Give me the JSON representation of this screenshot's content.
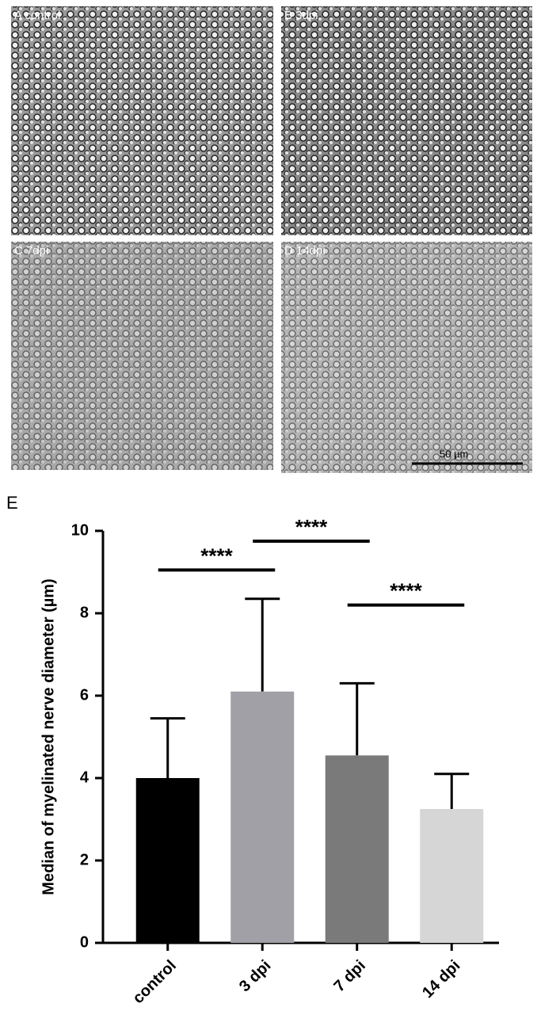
{
  "panels": [
    {
      "label": "A control",
      "shade": "#9a9a9a"
    },
    {
      "label": "B 3dpi",
      "shade": "#8a8a8a"
    },
    {
      "label": "C 7dpi",
      "shade": "#a9a9a9"
    },
    {
      "label": "D 14dpi",
      "shade": "#b5b5b5"
    }
  ],
  "scale_bar": "50 µm",
  "chart_data": {
    "type": "bar",
    "panel_label": "E",
    "ylabel": "Median of myelinated nerve diameter (µm)",
    "categories": [
      "control",
      "3 dpi",
      "7 dpi",
      "14 dpi"
    ],
    "values": [
      4.0,
      6.1,
      4.55,
      3.25
    ],
    "errors": [
      1.45,
      2.25,
      1.75,
      0.85
    ],
    "colors": [
      "#000000",
      "#a0a0a6",
      "#7a7a7a",
      "#d6d6d6"
    ],
    "ylim": [
      0,
      10
    ],
    "yticks": [
      0,
      2,
      4,
      6,
      8,
      10
    ],
    "annotations": [
      {
        "text": "****",
        "between": [
          "control",
          "3 dpi"
        ],
        "y": 9.05
      },
      {
        "text": "****",
        "between": [
          "3 dpi",
          "7 dpi"
        ],
        "y": 9.75
      },
      {
        "text": "****",
        "between": [
          "7 dpi",
          "14 dpi"
        ],
        "y": 8.2
      }
    ]
  }
}
